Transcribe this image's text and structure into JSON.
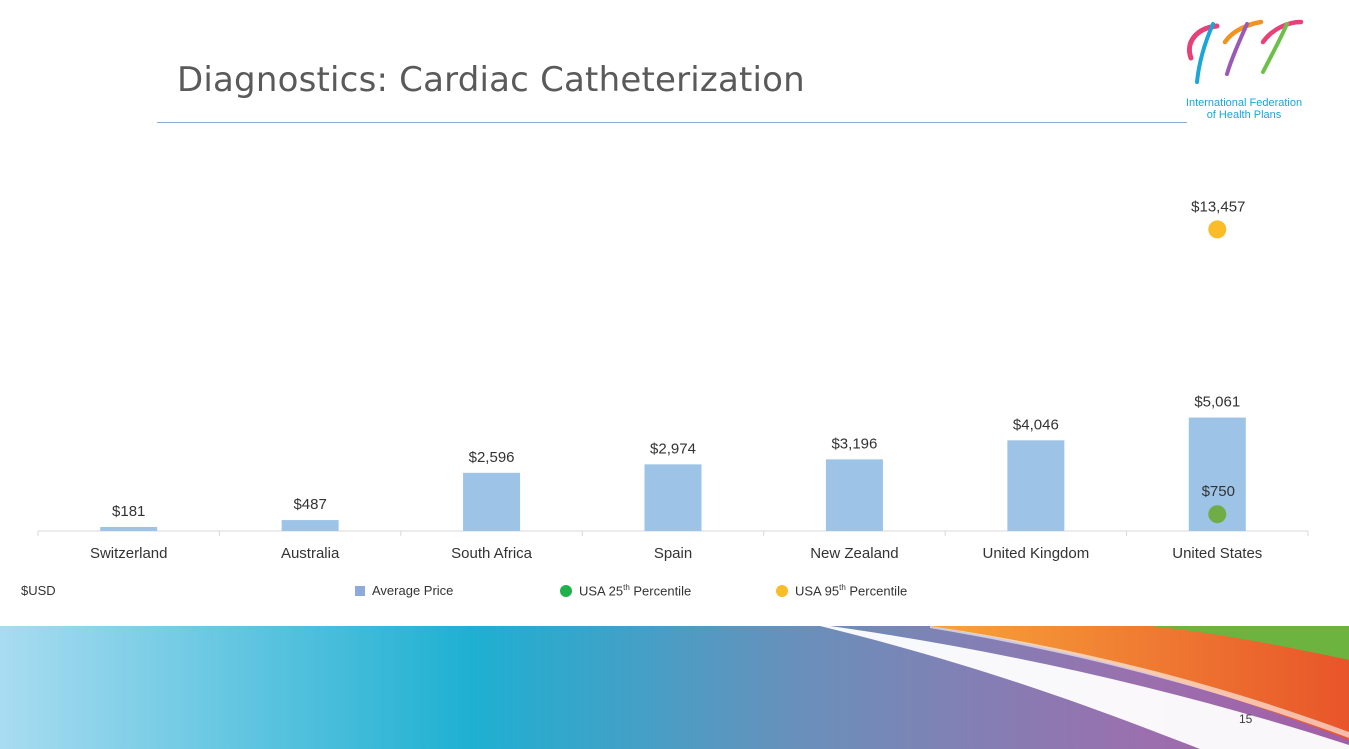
{
  "slide": {
    "title": "Diagnostics: Cardiac Catheterization",
    "page_number": "15",
    "unit_label": "$USD",
    "logo_line1": "International Federation",
    "logo_line2": "of Health Plans"
  },
  "legend": {
    "average_price": "Average Price",
    "usa25_prefix": "USA 25",
    "usa25_sup": "th",
    "usa25_suffix": " Percentile",
    "usa95_prefix": "USA 95",
    "usa95_sup": "th",
    "usa95_suffix": " Percentile"
  },
  "colors": {
    "bar": "#9dc3e6",
    "p25": "#70ad47",
    "p95": "#fbbc2a",
    "legend_bar": "#8eaadb",
    "legend_p25": "#1fb14b",
    "legend_p95": "#fbbc2a",
    "axis": "#d9d9d9",
    "label": "#333333"
  },
  "chart_data": {
    "type": "bar",
    "categories": [
      "Switzerland",
      "Australia",
      "South Africa",
      "Spain",
      "New Zealand",
      "United Kingdom",
      "United States"
    ],
    "series": [
      {
        "name": "Average Price",
        "values": [
          181,
          487,
          2596,
          2974,
          3196,
          4046,
          5061
        ],
        "labels": [
          "$181",
          "$487",
          "$2,596",
          "$2,974",
          "$3,196",
          "$4,046",
          "$5,061"
        ]
      },
      {
        "name": "USA 25th Percentile",
        "values": [
          null,
          null,
          null,
          null,
          null,
          null,
          750
        ],
        "labels": [
          null,
          null,
          null,
          null,
          null,
          null,
          "$750"
        ]
      },
      {
        "name": "USA 95th Percentile",
        "values": [
          null,
          null,
          null,
          null,
          null,
          null,
          13457
        ],
        "labels": [
          null,
          null,
          null,
          null,
          null,
          null,
          "$13,457"
        ]
      }
    ],
    "ylim": [
      0,
      14500
    ],
    "grid": false,
    "legend_position": "bottom"
  }
}
